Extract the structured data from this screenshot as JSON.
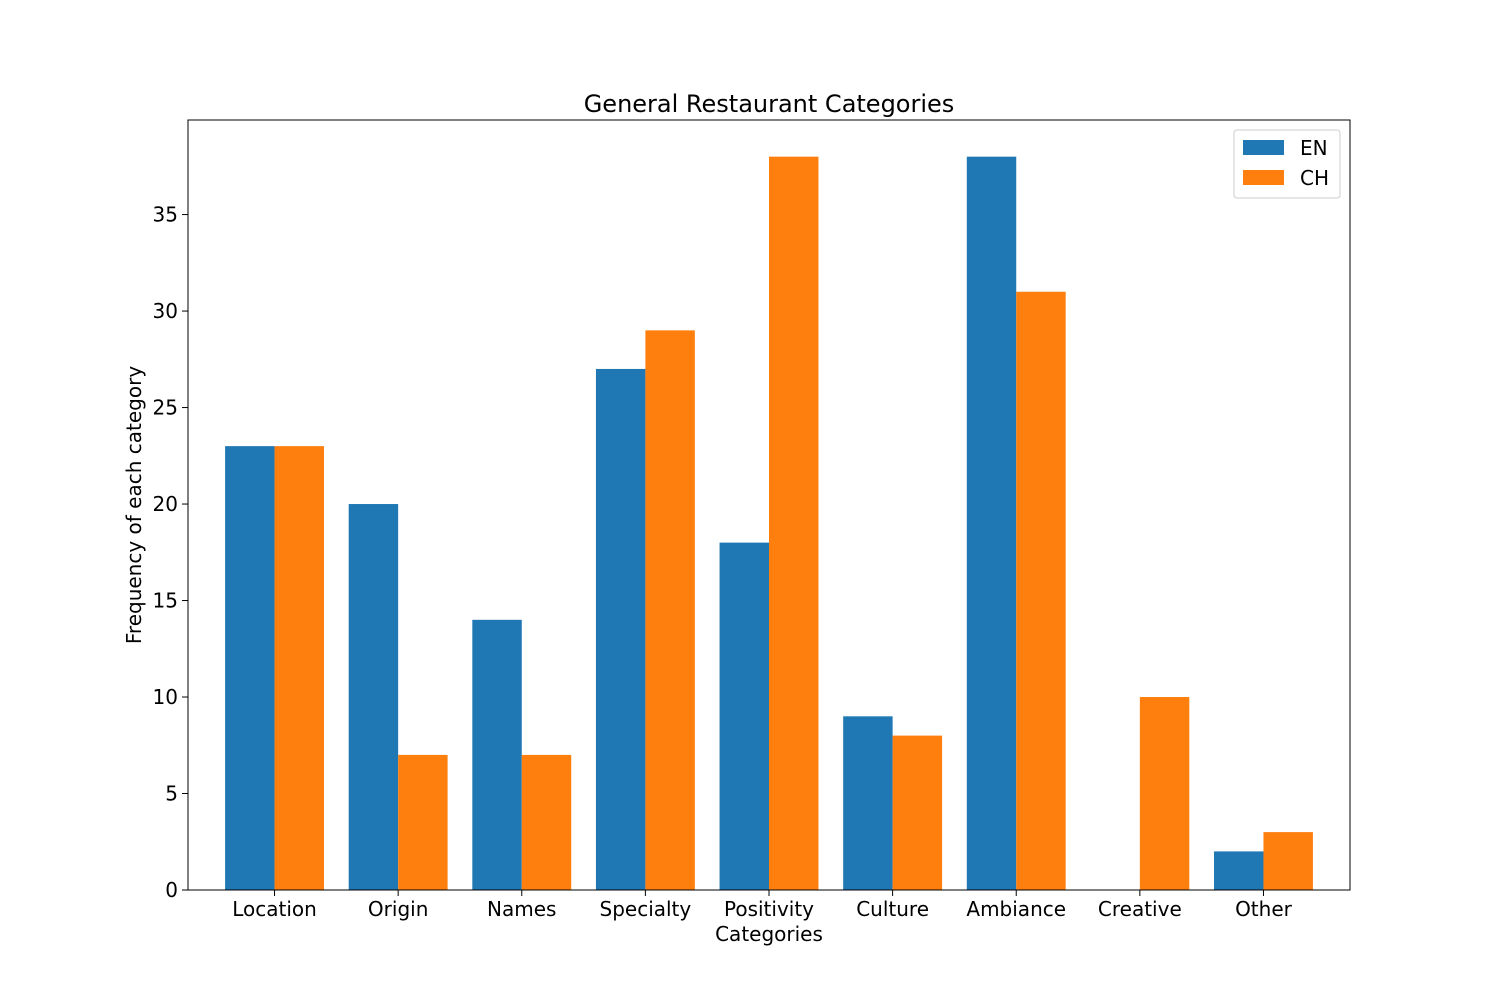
{
  "chart_data": {
    "type": "bar",
    "title": "General Restaurant Categories",
    "xlabel": "Categories",
    "ylabel": "Frequency of each category",
    "categories": [
      "Location",
      "Origin",
      "Names",
      "Specialty",
      "Positivity",
      "Culture",
      "Ambiance",
      "Creative",
      "Other"
    ],
    "series": [
      {
        "name": "EN",
        "color": "#1f77b4",
        "values": [
          23,
          20,
          14,
          27,
          18,
          9,
          38,
          0,
          2
        ]
      },
      {
        "name": "CH",
        "color": "#ff7f0e",
        "values": [
          23,
          7,
          7,
          29,
          38,
          8,
          31,
          10,
          3
        ]
      }
    ],
    "ylim": [
      0,
      39.9
    ],
    "yticks": [
      0,
      5,
      10,
      15,
      20,
      25,
      30,
      35
    ],
    "grid": false,
    "legend_position": "top-right"
  }
}
